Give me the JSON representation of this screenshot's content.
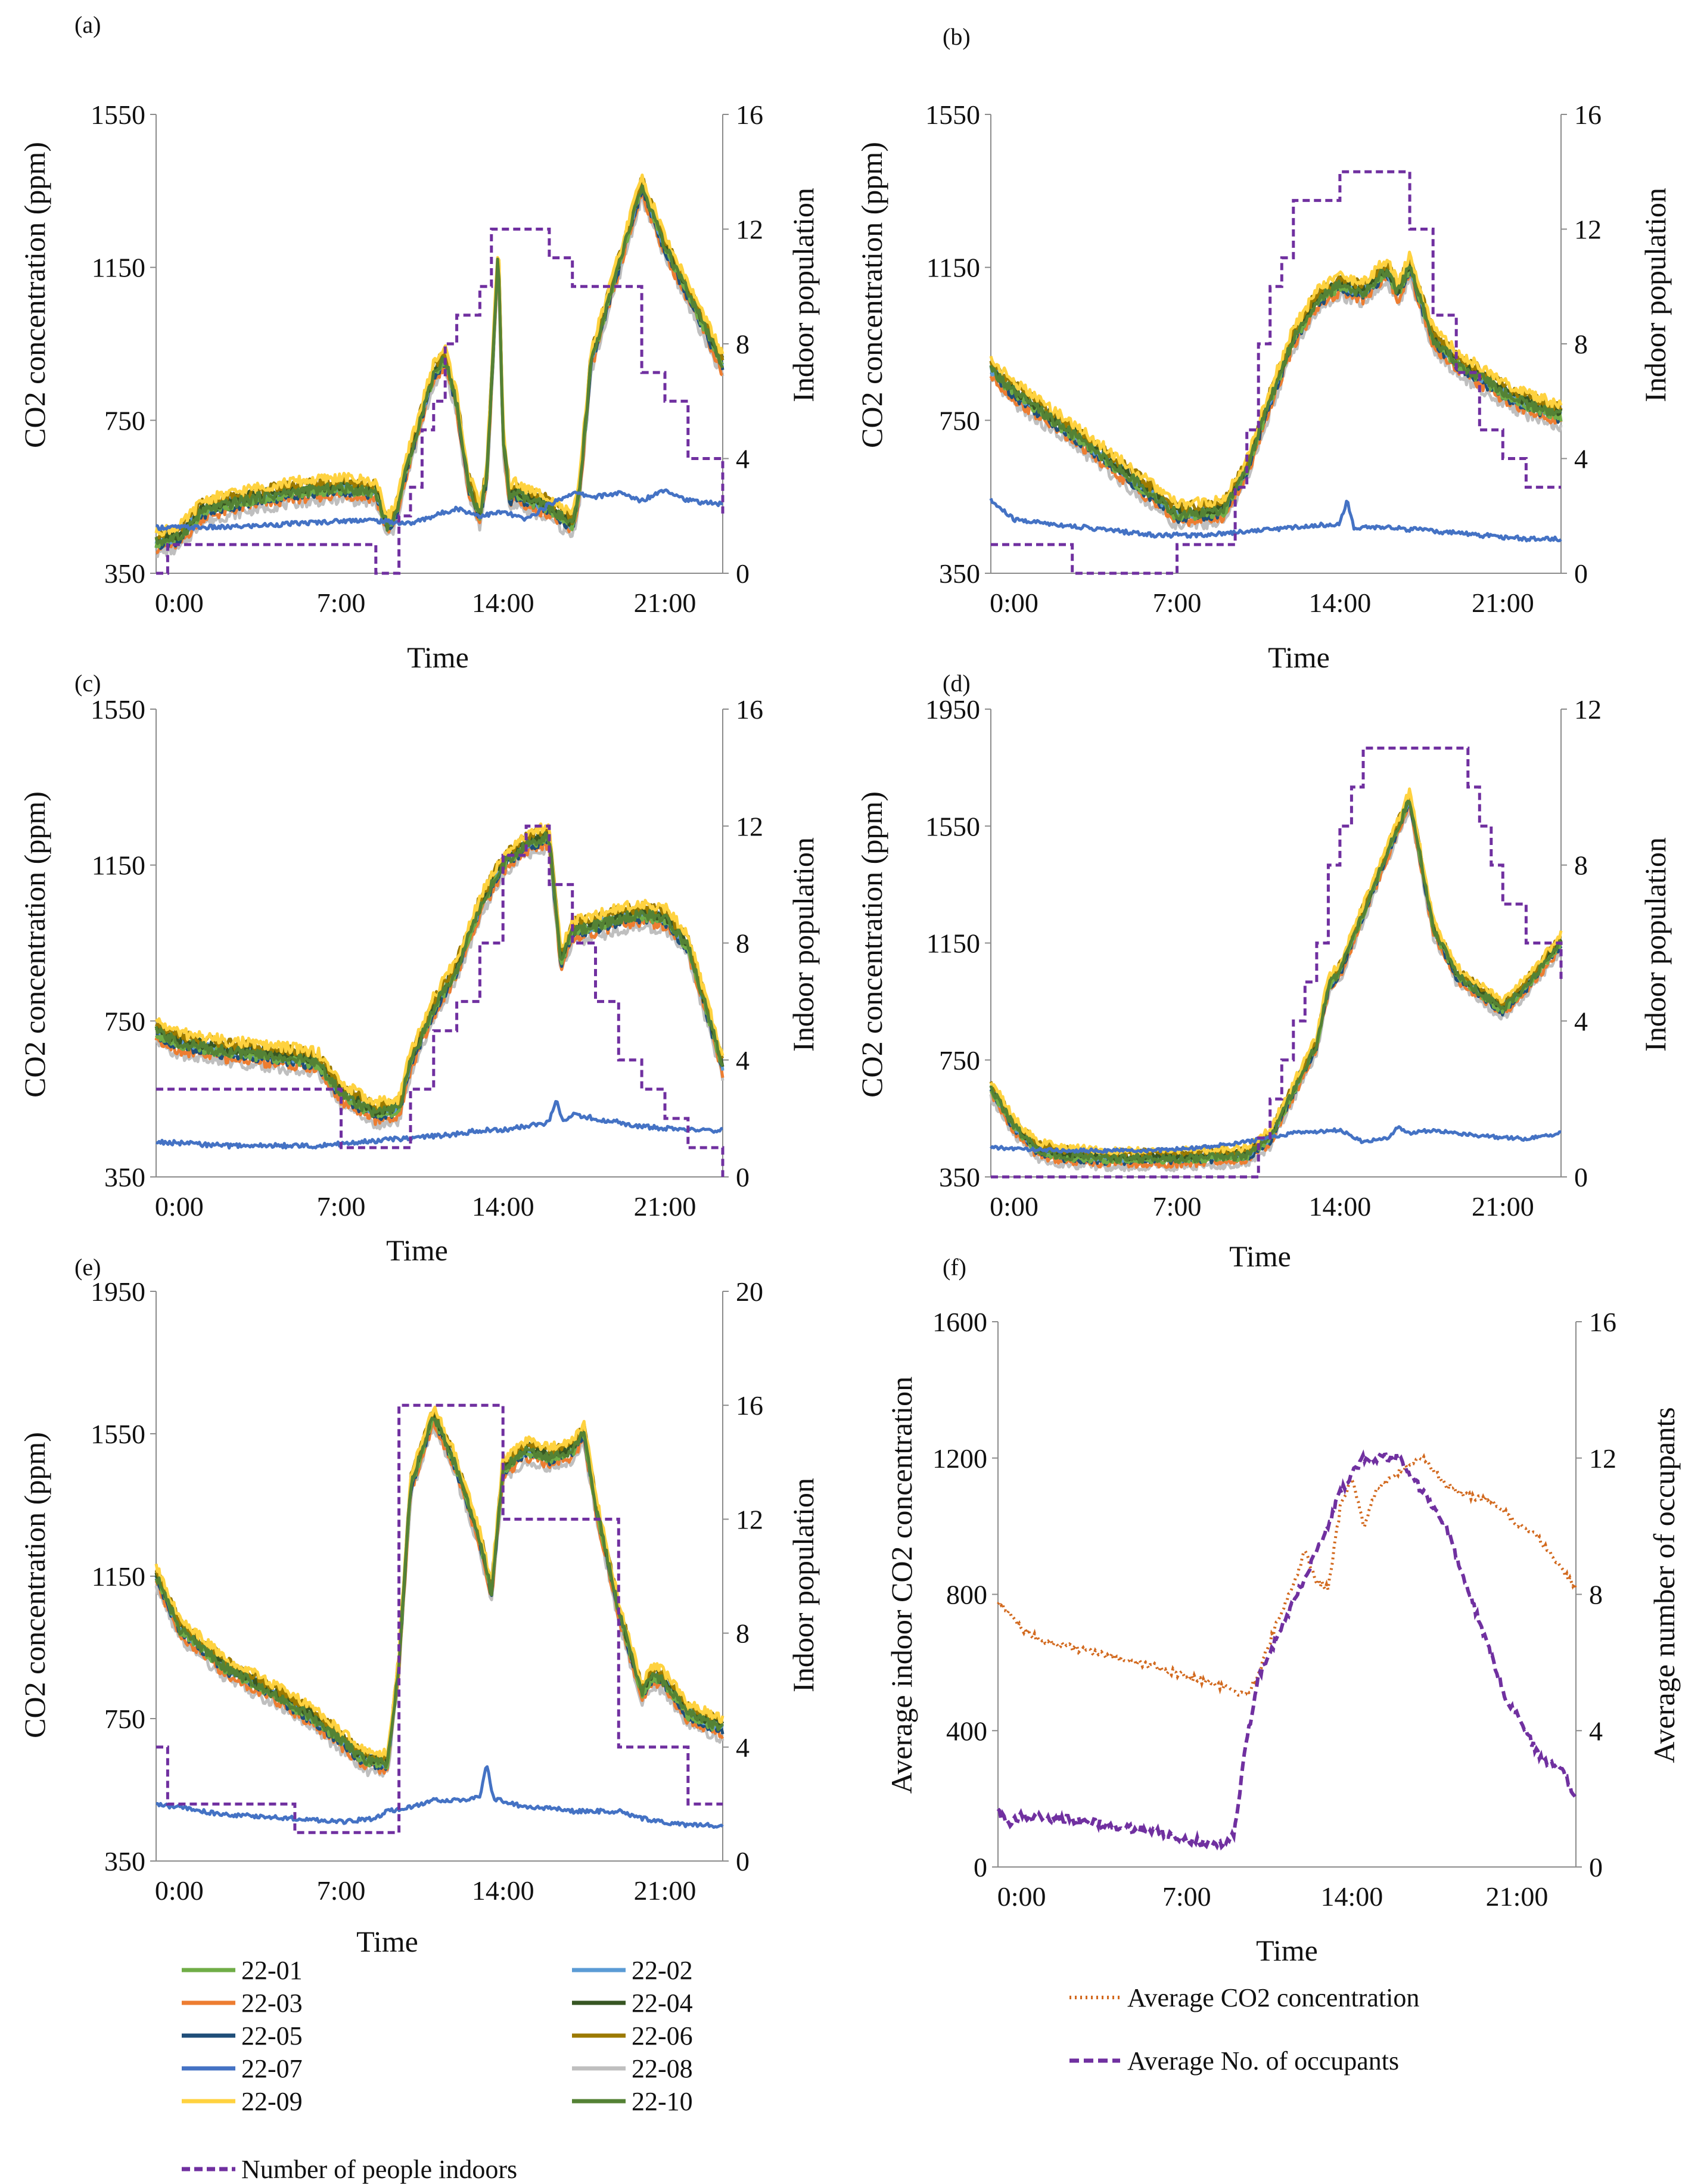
{
  "chart_data": [
    {
      "id": "a",
      "panel_label": "(a)",
      "type": "line",
      "xlabel": "Time",
      "ylabel": "CO2 concentration  (ppm)",
      "y2label": "Indoor population",
      "x_tick_labels": [
        "0:00",
        "7:00",
        "14:00",
        "21:00"
      ],
      "x_tick_hours": [
        0,
        7,
        14,
        21
      ],
      "xlim": [
        -1,
        23.5
      ],
      "ylim": [
        350,
        1550
      ],
      "y_ticks": [
        350,
        750,
        1150,
        1550
      ],
      "y2lim": [
        0,
        16
      ],
      "y2_ticks": [
        0,
        4,
        8,
        12,
        16
      ],
      "co2_profile": {
        "x": [
          -1,
          0,
          1,
          3,
          5,
          7,
          8.5,
          9,
          9.3,
          10,
          11,
          11.5,
          12,
          12.5,
          13,
          13.3,
          13.8,
          14,
          14.3,
          14.5,
          15,
          16,
          17,
          17.3,
          17.8,
          19,
          20,
          21,
          22,
          23.5
        ],
        "y": [
          430,
          440,
          510,
          540,
          560,
          570,
          560,
          470,
          490,
          660,
          870,
          910,
          790,
          580,
          500,
          600,
          1200,
          700,
          540,
          560,
          540,
          520,
          470,
          560,
          900,
          1150,
          1360,
          1200,
          1080,
          890
        ]
      },
      "co2_7_profile": {
        "x": [
          -1,
          2,
          5,
          8,
          10,
          11,
          12,
          13,
          14,
          15,
          16,
          17,
          18,
          19,
          20,
          21,
          22,
          23.5
        ],
        "y": [
          470,
          470,
          480,
          490,
          480,
          500,
          520,
          500,
          510,
          490,
          530,
          560,
          550,
          560,
          540,
          570,
          540,
          530
        ]
      },
      "people": {
        "x": [
          -1,
          -0.5,
          8.5,
          9.5,
          10,
          10.5,
          11,
          11.5,
          12,
          12.5,
          13,
          13.5,
          14,
          15,
          16,
          17,
          19,
          20,
          21,
          22,
          23.5
        ],
        "y": [
          0,
          1,
          0,
          2,
          3,
          5,
          6,
          8,
          9,
          9,
          10,
          12,
          12,
          12,
          11,
          10,
          10,
          7,
          6,
          4,
          2
        ]
      }
    },
    {
      "id": "b",
      "panel_label": "(b)",
      "type": "line",
      "xlabel": "Time",
      "ylabel": "CO2 concentration  (ppm)",
      "y2label": "Indoor population",
      "x_tick_labels": [
        "0:00",
        "7:00",
        "14:00",
        "21:00"
      ],
      "x_tick_hours": [
        0,
        7,
        14,
        21
      ],
      "xlim": [
        -1,
        23.5
      ],
      "ylim": [
        350,
        1550
      ],
      "y_ticks": [
        350,
        750,
        1150,
        1550
      ],
      "y2lim": [
        0,
        16
      ],
      "y2_ticks": [
        0,
        4,
        8,
        12,
        16
      ],
      "co2_profile": {
        "x": [
          -1,
          0,
          3,
          6,
          7,
          9,
          10,
          11,
          12,
          13,
          14,
          15,
          16,
          16.5,
          17,
          18,
          19,
          20,
          21,
          22,
          23.5
        ],
        "y": [
          880,
          820,
          690,
          550,
          500,
          510,
          620,
          800,
          960,
          1060,
          1100,
          1080,
          1140,
          1080,
          1150,
          960,
          900,
          860,
          820,
          790,
          760
        ]
      },
      "co2_7_profile": {
        "x": [
          -1,
          0,
          3,
          6,
          8,
          10,
          12,
          14,
          14.3,
          14.6,
          16,
          18,
          20,
          22,
          23.5
        ],
        "y": [
          540,
          490,
          470,
          450,
          450,
          460,
          470,
          480,
          540,
          470,
          470,
          460,
          450,
          440,
          440
        ]
      },
      "people": {
        "x": [
          -1,
          2.5,
          3,
          7,
          9.5,
          10,
          10.5,
          11,
          11.5,
          12,
          12.5,
          13,
          14,
          17,
          18,
          19,
          20,
          21,
          22,
          23.5
        ],
        "y": [
          1,
          0,
          0,
          1,
          3,
          5,
          8,
          10,
          11,
          13,
          13,
          13,
          14,
          12,
          9,
          7,
          5,
          4,
          3,
          3
        ]
      }
    },
    {
      "id": "c",
      "panel_label": "(c)",
      "type": "line",
      "xlabel": "Time",
      "ylabel": "CO2 concentration  (ppm)",
      "y2label": "Indoor population",
      "x_tick_labels": [
        "0:00",
        "7:00",
        "14:00",
        "21:00"
      ],
      "x_tick_hours": [
        0,
        7,
        14,
        21
      ],
      "xlim": [
        -1,
        23.5
      ],
      "ylim": [
        350,
        1550
      ],
      "y_ticks": [
        350,
        750,
        1150,
        1550
      ],
      "y2lim": [
        0,
        16
      ],
      "y2_ticks": [
        0,
        4,
        8,
        12,
        16
      ],
      "co2_profile": {
        "x": [
          -1,
          0,
          2,
          5,
          6,
          7,
          8.5,
          9.5,
          10,
          11,
          12,
          13,
          14,
          15,
          16,
          16.5,
          17,
          18,
          19,
          20,
          21,
          22,
          23.5
        ],
        "y": [
          720,
          690,
          670,
          650,
          640,
          560,
          510,
          520,
          640,
          780,
          880,
          1040,
          1150,
          1200,
          1220,
          900,
          980,
          990,
          1010,
          1020,
          1010,
          940,
          630
        ]
      },
      "co2_7_profile": {
        "x": [
          -1,
          2,
          6,
          8,
          10,
          12,
          13,
          14,
          15,
          16,
          16.3,
          16.6,
          17,
          18,
          20,
          22,
          23.5
        ],
        "y": [
          440,
          430,
          430,
          440,
          450,
          460,
          470,
          470,
          480,
          490,
          550,
          490,
          510,
          500,
          480,
          470,
          470
        ]
      },
      "people": {
        "x": [
          -1,
          6.5,
          7,
          9.5,
          10,
          11,
          12,
          13,
          14,
          15,
          16,
          17,
          18,
          19,
          20,
          21,
          22,
          23.5
        ],
        "y": [
          3,
          3,
          1,
          1,
          3,
          5,
          6,
          8,
          11,
          12,
          10,
          8,
          6,
          4,
          3,
          2,
          1,
          0
        ]
      }
    },
    {
      "id": "d",
      "panel_label": "(d)",
      "type": "line",
      "xlabel": "Time",
      "ylabel": "CO2 concentration  (ppm)",
      "y2label": "Indoor population",
      "x_tick_labels": [
        "0:00",
        "7:00",
        "14:00",
        "21:00"
      ],
      "x_tick_hours": [
        0,
        7,
        14,
        21
      ],
      "xlim": [
        -1,
        23.5
      ],
      "ylim": [
        350,
        1950
      ],
      "y_ticks": [
        350,
        750,
        1150,
        1550,
        1950
      ],
      "y2lim": [
        0,
        12
      ],
      "y2_ticks": [
        0,
        4,
        8,
        12
      ],
      "co2_profile": {
        "x": [
          -1,
          0,
          1,
          2,
          4,
          7,
          10,
          11,
          12,
          13,
          13.5,
          14,
          15,
          16,
          17,
          18,
          19,
          20,
          21,
          22,
          23.5
        ],
        "y": [
          650,
          520,
          440,
          420,
          410,
          410,
          420,
          480,
          640,
          800,
          1000,
          1050,
          1250,
          1450,
          1640,
          1200,
          1040,
          980,
          920,
          1000,
          1150
        ]
      },
      "co2_7_profile": {
        "x": [
          -1,
          2,
          6,
          8,
          10,
          12,
          14,
          15,
          16,
          16.5,
          17,
          18,
          20,
          22,
          23.5
        ],
        "y": [
          450,
          440,
          440,
          450,
          470,
          500,
          510,
          470,
          480,
          520,
          500,
          510,
          490,
          480,
          500
        ]
      },
      "people": {
        "x": [
          -1,
          10,
          10.5,
          11,
          11.5,
          12,
          12.5,
          13,
          13.5,
          14,
          14.5,
          15,
          19,
          19.5,
          20,
          20.5,
          21,
          22,
          23.5
        ],
        "y": [
          0,
          0,
          1,
          2,
          3,
          4,
          5,
          6,
          8,
          9,
          10,
          11,
          11,
          10,
          9,
          8,
          7,
          6,
          5
        ]
      }
    },
    {
      "id": "e",
      "panel_label": "(e)",
      "type": "line",
      "xlabel": "Time",
      "ylabel": "CO2 concentration  (ppm)",
      "y2label": "Indoor population",
      "x_tick_labels": [
        "0:00",
        "7:00",
        "14:00",
        "21:00"
      ],
      "x_tick_hours": [
        0,
        7,
        14,
        21
      ],
      "xlim": [
        -1,
        23.5
      ],
      "ylim": [
        350,
        1950
      ],
      "y_ticks": [
        350,
        750,
        1150,
        1550,
        1950
      ],
      "y2lim": [
        0,
        20
      ],
      "y2_ticks": [
        0,
        4,
        8,
        12,
        16,
        20
      ],
      "co2_profile": {
        "x": [
          -1,
          0,
          2,
          4,
          6,
          8,
          9,
          9.5,
          10,
          11,
          12,
          13,
          13.5,
          14,
          15,
          16,
          17,
          17.5,
          18,
          19,
          20,
          20.5,
          21,
          22,
          23.5
        ],
        "y": [
          1150,
          1000,
          890,
          820,
          740,
          630,
          620,
          900,
          1400,
          1600,
          1450,
          1250,
          1100,
          1450,
          1500,
          1480,
          1500,
          1550,
          1350,
          1050,
          820,
          870,
          850,
          760,
          720
        ]
      },
      "co2_7_profile": {
        "x": [
          -1,
          2,
          5,
          7,
          8.5,
          9,
          10,
          11,
          12,
          13,
          13.3,
          13.6,
          14,
          15,
          16,
          17,
          18,
          19,
          20,
          21,
          22,
          23.5
        ],
        "y": [
          510,
          480,
          470,
          460,
          470,
          490,
          500,
          520,
          520,
          530,
          620,
          520,
          520,
          500,
          500,
          490,
          490,
          490,
          470,
          460,
          450,
          450
        ]
      },
      "people": {
        "x": [
          -1,
          -0.5,
          5,
          9,
          9.5,
          13.5,
          14,
          18.5,
          19,
          21,
          22,
          23.5
        ],
        "y": [
          4,
          2,
          1,
          1,
          16,
          16,
          12,
          12,
          4,
          4,
          2,
          2
        ]
      }
    },
    {
      "id": "f",
      "panel_label": "(f)",
      "type": "line",
      "xlabel": "Time",
      "ylabel": "Average indoor CO2 concentration",
      "y2label": "Average number of occupants",
      "x_tick_labels": [
        "0:00",
        "7:00",
        "14:00",
        "21:00"
      ],
      "x_tick_hours": [
        0,
        7,
        14,
        21
      ],
      "xlim": [
        -1,
        23.5
      ],
      "ylim": [
        0,
        1600
      ],
      "y_ticks": [
        0,
        400,
        800,
        1200,
        1600
      ],
      "y2lim": [
        0,
        16
      ],
      "y2_ticks": [
        0,
        4,
        8,
        12,
        16
      ],
      "series": [
        {
          "name": "Average CO2 concentration",
          "axis": "left",
          "color": "#D2691E",
          "style": "dotted",
          "x": [
            -1,
            0,
            1,
            3,
            5,
            7,
            8,
            9,
            9.5,
            10,
            11,
            11.5,
            12,
            12.5,
            13,
            13.5,
            14,
            14.5,
            15,
            16,
            17,
            18,
            19,
            20,
            21,
            22,
            23.5
          ],
          "y": [
            780,
            700,
            660,
            630,
            600,
            560,
            540,
            520,
            500,
            560,
            750,
            820,
            930,
            840,
            820,
            1050,
            1140,
            1000,
            1100,
            1160,
            1200,
            1120,
            1090,
            1070,
            1010,
            960,
            820
          ]
        },
        {
          "name": "Average No. of occupants",
          "axis": "right",
          "color": "#7030A0",
          "style": "dashed",
          "x": [
            -1,
            -0.5,
            0,
            2,
            3,
            5,
            6,
            7,
            8,
            8.5,
            9,
            9.5,
            10,
            11,
            12,
            13,
            13.5,
            14,
            14.5,
            15,
            16,
            16.5,
            17,
            17.5,
            18,
            18.5,
            19,
            19.5,
            20,
            20.5,
            21,
            21.5,
            22,
            23,
            23.5
          ],
          "y": [
            1.6,
            1.3,
            1.5,
            1.4,
            1.3,
            1.1,
            1.0,
            0.8,
            0.7,
            0.7,
            1.0,
            3.5,
            5.5,
            7.0,
            8.5,
            10.0,
            11.0,
            11.5,
            12.0,
            12.0,
            12.0,
            11.5,
            11.0,
            10.5,
            10.0,
            9.0,
            8.0,
            7.0,
            6.0,
            5.0,
            4.5,
            3.8,
            3.2,
            2.8,
            2.0
          ]
        }
      ]
    }
  ],
  "legend_left": {
    "items": [
      {
        "label": "22-01",
        "color": "#70AD47"
      },
      {
        "label": "22-02",
        "color": "#5B9BD5"
      },
      {
        "label": "22-03",
        "color": "#ED7D31"
      },
      {
        "label": "22-04",
        "color": "#375623"
      },
      {
        "label": "22-05",
        "color": "#1F4E79"
      },
      {
        "label": "22-06",
        "color": "#9C7A00"
      },
      {
        "label": "22-07",
        "color": "#4472C4"
      },
      {
        "label": "22-08",
        "color": "#BFBFBF"
      },
      {
        "label": "22-09",
        "color": "#FFD23F"
      },
      {
        "label": "22-10",
        "color": "#548235"
      }
    ],
    "people_label": "Number of people indoors",
    "people_color": "#7030A0"
  },
  "legend_right": {
    "items": [
      {
        "label": "Average CO2 concentration",
        "color": "#D2691E",
        "style": "dotted"
      },
      {
        "label": "Average No. of occupants",
        "color": "#7030A0",
        "style": "dashed"
      }
    ]
  },
  "series_offsets": [
    0,
    6,
    -14,
    12,
    -4,
    22,
    null,
    -26,
    30,
    3
  ],
  "series_draw_order": [
    7,
    2,
    4,
    1,
    0,
    3,
    5,
    8,
    9,
    6
  ]
}
